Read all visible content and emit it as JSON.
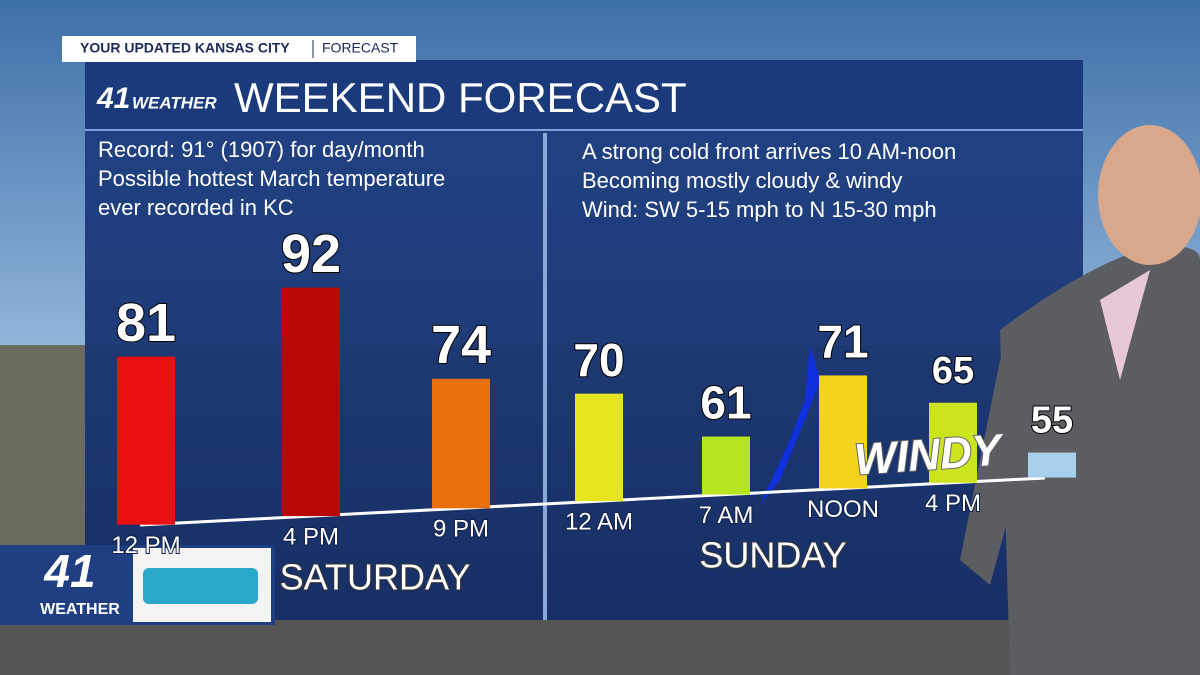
{
  "banner": {
    "title": "YOUR UPDATED KANSAS CITY",
    "section": "FORECAST"
  },
  "logo": {
    "number": "41",
    "word": "WEATHER"
  },
  "chart_data": {
    "type": "bar",
    "title": "WEEKEND FORECAST",
    "notes_left": [
      "Record: 91° (1907) for day/month",
      "Possible hottest March temperature",
      "ever recorded in KC"
    ],
    "notes_right": [
      "A strong cold front arrives 10 AM-noon",
      "Becoming mostly cloudy & windy",
      "Wind: SW 5-15 mph to N 15-30 mph"
    ],
    "categories": [
      "12 PM",
      "4 PM",
      "9 PM",
      "12 AM",
      "7 AM",
      "NOON",
      "4 PM",
      null
    ],
    "values": [
      81,
      92,
      74,
      70,
      61,
      71,
      65,
      55
    ],
    "colors": [
      "#e81010",
      "#b80808",
      "#e8700c",
      "#e6e41e",
      "#b6e41e",
      "#f2d41e",
      "#cce41e",
      "#a8d0ec"
    ],
    "groups": [
      "SATURDAY",
      "SUNDAY"
    ],
    "annotation": "WINDY"
  }
}
